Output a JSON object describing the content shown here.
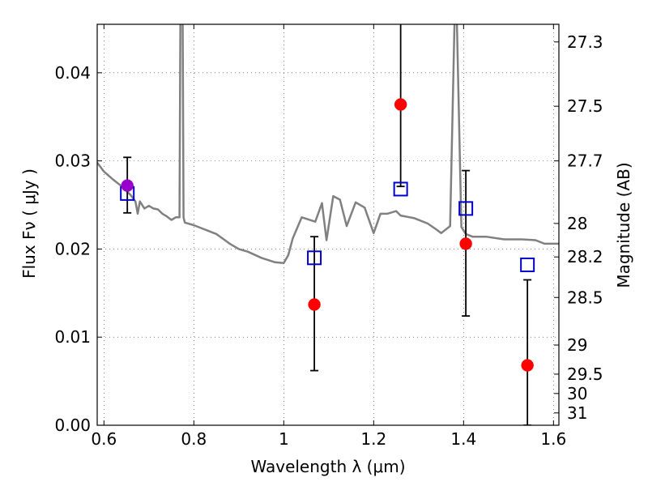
{
  "chart_data": {
    "type": "scatter",
    "xlabel": "Wavelength  λ (μm)",
    "ylabel": "Flux  Fν  ( μJy )",
    "y2label": "Magnitude (AB)",
    "xlim": [
      0.585,
      1.612
    ],
    "ylim": [
      0.0,
      0.0455
    ],
    "grid": true,
    "x_ticks": [
      {
        "value": 0.6,
        "label": "0.6"
      },
      {
        "value": 0.8,
        "label": "0.8"
      },
      {
        "value": 1.0,
        "label": "1"
      },
      {
        "value": 1.2,
        "label": "1.2"
      },
      {
        "value": 1.4,
        "label": "1.4"
      },
      {
        "value": 1.6,
        "label": "1.6"
      }
    ],
    "y_ticks": [
      {
        "value": 0.0,
        "label": "0.00"
      },
      {
        "value": 0.01,
        "label": "0.01"
      },
      {
        "value": 0.02,
        "label": "0.02"
      },
      {
        "value": 0.03,
        "label": "0.03"
      },
      {
        "value": 0.04,
        "label": "0.04"
      }
    ],
    "y2_ticks": [
      {
        "flux": 0.0435,
        "label": "27.3"
      },
      {
        "flux": 0.0362,
        "label": "27.5"
      },
      {
        "flux": 0.03,
        "label": "27.7"
      },
      {
        "flux": 0.0229,
        "label": "28"
      },
      {
        "flux": 0.0191,
        "label": "28.2"
      },
      {
        "flux": 0.0145,
        "label": "28.5"
      },
      {
        "flux": 0.0091,
        "label": "29"
      },
      {
        "flux": 0.0058,
        "label": "29.5"
      },
      {
        "flux": 0.0036,
        "label": "30"
      },
      {
        "flux": 0.0014,
        "label": "31"
      }
    ],
    "series": [
      {
        "type": "line",
        "color": "#808080",
        "x": [
          0.585,
          0.6,
          0.62,
          0.64,
          0.66,
          0.67,
          0.675,
          0.68,
          0.69,
          0.7,
          0.71,
          0.72,
          0.73,
          0.74,
          0.75,
          0.76,
          0.768,
          0.77,
          0.775,
          0.777,
          0.78,
          0.8,
          0.85,
          0.88,
          0.9,
          0.92,
          0.95,
          0.98,
          1.0,
          1.01,
          1.02,
          1.04,
          1.07,
          1.085,
          1.095,
          1.11,
          1.125,
          1.14,
          1.16,
          1.18,
          1.2,
          1.215,
          1.23,
          1.25,
          1.26,
          1.29,
          1.32,
          1.34,
          1.35,
          1.37,
          1.38,
          1.385,
          1.395,
          1.405,
          1.42,
          1.45,
          1.49,
          1.53,
          1.56,
          1.58,
          1.612
        ],
        "y": [
          0.0298,
          0.0288,
          0.0279,
          0.0271,
          0.0261,
          0.0254,
          0.024,
          0.0254,
          0.0246,
          0.0249,
          0.0246,
          0.0245,
          0.024,
          0.0237,
          0.0233,
          0.0236,
          0.0236,
          0.046,
          0.046,
          0.0236,
          0.023,
          0.0227,
          0.0217,
          0.0206,
          0.02,
          0.0197,
          0.019,
          0.0185,
          0.0184,
          0.0193,
          0.0212,
          0.0236,
          0.0231,
          0.0252,
          0.021,
          0.026,
          0.0256,
          0.0226,
          0.0253,
          0.0247,
          0.0218,
          0.024,
          0.024,
          0.0243,
          0.0238,
          0.0235,
          0.0229,
          0.0222,
          0.0218,
          0.0226,
          0.046,
          0.046,
          0.0225,
          0.0217,
          0.0214,
          0.0214,
          0.0211,
          0.0211,
          0.021,
          0.0206,
          0.0206
        ]
      },
      {
        "type": "points",
        "marker": "open-square",
        "color": "#0000cc",
        "x": [
          0.652,
          1.068,
          1.26,
          1.405,
          1.542
        ],
        "y": [
          0.0263,
          0.019,
          0.0268,
          0.0246,
          0.0182
        ]
      },
      {
        "type": "points",
        "marker": "filled-circle",
        "color": "#ff0000",
        "x": [
          1.068,
          1.26,
          1.405,
          1.542
        ],
        "y": [
          0.0137,
          0.0364,
          0.0206,
          0.0068
        ],
        "yerr_low": [
          0.0075,
          0.0093,
          0.0082,
          0.0068
        ],
        "yerr_high": [
          0.0077,
          0.02,
          0.0083,
          0.0097
        ]
      },
      {
        "type": "points",
        "marker": "filled-circle",
        "color": "#9900cc",
        "x": [
          0.652
        ],
        "y": [
          0.0272
        ],
        "yerr_low": [
          0.0031
        ],
        "yerr_high": [
          0.0032
        ]
      }
    ]
  }
}
